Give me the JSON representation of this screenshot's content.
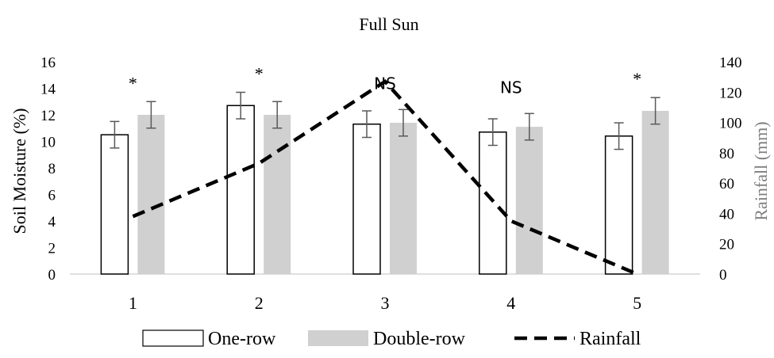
{
  "chart_data": {
    "type": "bar",
    "title": "Full Sun",
    "xlabel": "",
    "ylabel": "Soil Moisture (%)",
    "y2label": "Rainfall (mm)",
    "categories": [
      "1",
      "2",
      "3",
      "4",
      "5"
    ],
    "ylim": [
      0,
      16
    ],
    "yticks": [
      "0",
      "2",
      "4",
      "6",
      "8",
      "10",
      "12",
      "14",
      "16"
    ],
    "y2lim": [
      0,
      140
    ],
    "y2ticks": [
      "0",
      "20",
      "40",
      "60",
      "80",
      "100",
      "120",
      "140"
    ],
    "grid": false,
    "legend_position": "bottom",
    "series": [
      {
        "name": "One-row",
        "type": "bar",
        "axis": "left",
        "values": [
          10.5,
          12.7,
          11.3,
          10.7,
          10.4
        ],
        "errors": [
          1.0,
          1.0,
          1.0,
          1.0,
          1.0
        ],
        "fill": "#ffffff",
        "stroke": "#000000"
      },
      {
        "name": "Double-row",
        "type": "bar",
        "axis": "left",
        "values": [
          12.0,
          12.0,
          11.4,
          11.1,
          12.3
        ],
        "errors": [
          1.0,
          1.0,
          1.0,
          1.0,
          1.0
        ],
        "fill": "#d0d0d0",
        "stroke": "none"
      },
      {
        "name": "Rainfall",
        "type": "line",
        "axis": "right",
        "style": "dashed",
        "values": [
          38,
          73,
          127,
          35,
          0
        ],
        "color": "#000000"
      }
    ],
    "annotations": [
      "*",
      "*",
      "NS",
      "NS",
      "*"
    ],
    "error_bar_color": "#595959",
    "axis_color": "#bfbfbf",
    "right_label_color": "#7f7f7f"
  }
}
